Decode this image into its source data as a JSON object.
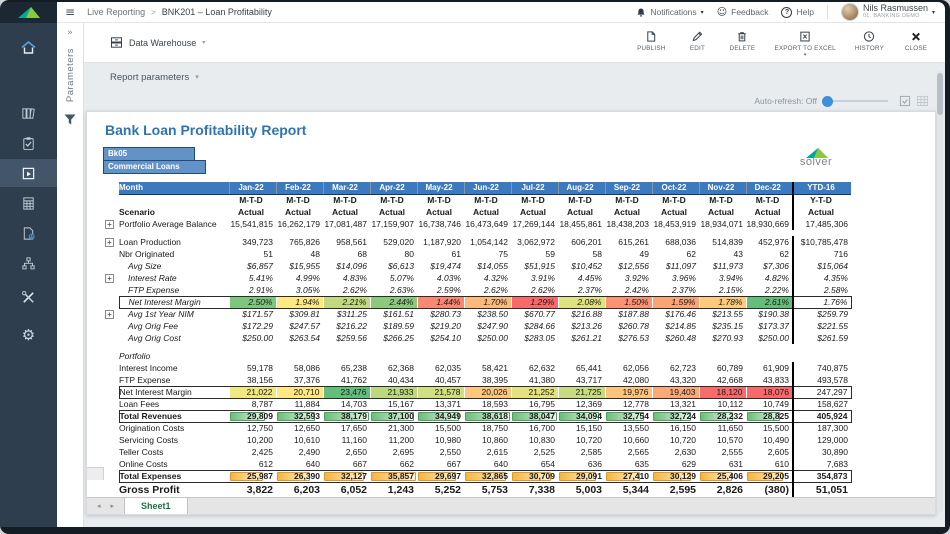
{
  "icons": {
    "hamburger": "≡",
    "chevron_down": "▾",
    "collapse": "»",
    "prev": "◂",
    "next": "▸",
    "plus": "+",
    "smiley": "☺",
    "help": "?",
    "gear": "⚙"
  },
  "titlebar": {
    "breadcrumb_root": "Live Reporting",
    "breadcrumb_sep": ">",
    "breadcrumb_current": "BNK201 – Loan Profitability",
    "notifications": "Notifications",
    "feedback": "Feedback",
    "help": "Help",
    "user_name": "Nils Rasmussen",
    "user_org": "01. Banking Demo"
  },
  "toolbar": {
    "source_label": "Data Warehouse",
    "actions": [
      {
        "id": "publish",
        "label": "PUBLISH"
      },
      {
        "id": "edit",
        "label": "EDIT"
      },
      {
        "id": "delete",
        "label": "DELETE"
      },
      {
        "id": "export",
        "label": "EXPORT TO EXCEL"
      },
      {
        "id": "history",
        "label": "HISTORY"
      },
      {
        "id": "close",
        "label": "CLOSE"
      }
    ]
  },
  "params": {
    "label": "Report parameters",
    "panel_label": "Parameters",
    "autorefresh_label": "Auto-refresh: Off"
  },
  "sheetbar": {
    "tab": "Sheet1"
  },
  "colors": {
    "title_blue": "#2e74b5",
    "header_blue": "#3c7ac0",
    "tag_blue": "#6292c6",
    "heat_red": "#F8696B",
    "heat_yellow": "#FFEB84",
    "heat_green": "#63BE7B",
    "databar_green": "#6cbd7a",
    "databar_gold": "#f7b53c",
    "sheet_tab_green": "#1e7145",
    "sidebar_navy": "#2f3e4e"
  },
  "report": {
    "title": "Bank Loan Profitability Report",
    "tags": [
      "Bk05",
      "Commercial Loans"
    ],
    "logo_text": "solver",
    "month_label": "Month",
    "period_mtd": "M-T-D",
    "period_ytd": "Y-T-D",
    "columns": [
      "Jan-22",
      "Feb-22",
      "Mar-22",
      "Apr-22",
      "May-22",
      "Jun-22",
      "Jul-22",
      "Aug-22",
      "Sep-22",
      "Oct-22",
      "Nov-22",
      "Dec-22",
      "YTD-16"
    ],
    "rows": [
      {
        "label": "Scenario",
        "cls": "bold center",
        "values": [
          "Actual",
          "Actual",
          "Actual",
          "Actual",
          "Actual",
          "Actual",
          "Actual",
          "Actual",
          "Actual",
          "Actual",
          "Actual",
          "Actual",
          "Actual"
        ]
      },
      {
        "label": "Portfolio Average Balance",
        "plus": true,
        "values": [
          "15,541,815",
          "16,262,179",
          "17,081,487",
          "17,159,907",
          "16,738,746",
          "16,473,649",
          "17,269,144",
          "18,455,861",
          "18,438,203",
          "18,453,919",
          "18,934,071",
          "18,930,669",
          "17,485,306"
        ]
      },
      {
        "blank": true
      },
      {
        "label": "Loan Production",
        "plus": true,
        "values": [
          "349,723",
          "765,826",
          "958,561",
          "529,020",
          "1,187,920",
          "1,054,142",
          "3,062,972",
          "606,201",
          "615,261",
          "688,036",
          "514,839",
          "452,976",
          "$10,785,478"
        ]
      },
      {
        "label": "Nbr Originated",
        "values": [
          "51",
          "48",
          "68",
          "80",
          "61",
          "75",
          "59",
          "58",
          "49",
          "62",
          "43",
          "62",
          "716"
        ]
      },
      {
        "label": "Avg Size",
        "cls": "italic",
        "ind": true,
        "values": [
          "$6,857",
          "$15,955",
          "$14,096",
          "$6,613",
          "$19,474",
          "$14,055",
          "$51,915",
          "$10,452",
          "$12,556",
          "$11,097",
          "$11,973",
          "$7,306",
          "$15,064"
        ]
      },
      {
        "label": "Interest Rate",
        "cls": "italic",
        "ind": true,
        "plus": true,
        "values": [
          "5.41%",
          "4.99%",
          "4.83%",
          "5.07%",
          "4.03%",
          "4.32%",
          "3.91%",
          "4.45%",
          "3.92%",
          "3.96%",
          "3.94%",
          "4.82%",
          "4.35%"
        ]
      },
      {
        "label": "FTP Expense",
        "cls": "italic",
        "ind": true,
        "values": [
          "2.91%",
          "3.05%",
          "2.62%",
          "2.63%",
          "2.59%",
          "2.62%",
          "2.62%",
          "2.37%",
          "2.42%",
          "2.37%",
          "2.15%",
          "2.22%",
          "2.58%"
        ]
      },
      {
        "label": "Net Interest Margin",
        "cls": "italic boxed",
        "ind": true,
        "viz": "colorscale",
        "nums": [
          2.5,
          1.94,
          2.21,
          2.44,
          1.44,
          1.7,
          1.29,
          2.08,
          1.5,
          1.59,
          1.78,
          2.61
        ],
        "values": [
          "2.50%",
          "1.94%",
          "2.21%",
          "2.44%",
          "1.44%",
          "1.70%",
          "1.29%",
          "2.08%",
          "1.50%",
          "1.59%",
          "1.78%",
          "2.61%",
          "1.76%"
        ]
      },
      {
        "label": "Avg 1st Year NIM",
        "cls": "italic",
        "ind": true,
        "plus": true,
        "values": [
          "$171.57",
          "$309.81",
          "$311.25",
          "$161.51",
          "$280.73",
          "$238.50",
          "$670.77",
          "$216.88",
          "$187.88",
          "$176.46",
          "$213.55",
          "$190.38",
          "$259.79"
        ]
      },
      {
        "label": "Avg Orig Fee",
        "cls": "italic",
        "ind": true,
        "values": [
          "$172.29",
          "$247.57",
          "$216.22",
          "$189.59",
          "$219.20",
          "$247.90",
          "$284.66",
          "$213.26",
          "$260.78",
          "$214.85",
          "$235.15",
          "$173.37",
          "$221.55"
        ]
      },
      {
        "label": "Avg Orig Cost",
        "cls": "italic",
        "ind": true,
        "values": [
          "$250.00",
          "$263.54",
          "$259.56",
          "$266.25",
          "$254.10",
          "$250.00",
          "$283.05",
          "$261.21",
          "$276.53",
          "$260.48",
          "$270.93",
          "$250.00",
          "$261.59"
        ]
      },
      {
        "blank": true
      },
      {
        "label": "Portfolio",
        "cls": "italic",
        "section": true
      },
      {
        "label": "Interest Income",
        "values": [
          "59,178",
          "58,086",
          "65,238",
          "62,368",
          "62,035",
          "58,421",
          "62,632",
          "65,441",
          "62,056",
          "62,723",
          "60,789",
          "61,909",
          "740,875"
        ]
      },
      {
        "label": "FTP Expense",
        "values": [
          "38,156",
          "37,376",
          "41,762",
          "40,434",
          "40,457",
          "38,395",
          "41,380",
          "43,717",
          "42,080",
          "43,320",
          "42,668",
          "43,833",
          "493,578"
        ]
      },
      {
        "label": "Net Interest Margin",
        "cls": "boxed",
        "viz": "colorscale",
        "nums": [
          21022,
          20710,
          23476,
          21933,
          21578,
          20026,
          21252,
          21725,
          19976,
          19403,
          18120,
          18076
        ],
        "values": [
          "21,022",
          "20,710",
          "23,476",
          "21,933",
          "21,578",
          "20,026",
          "21,252",
          "21,725",
          "19,976",
          "19,403",
          "18,120",
          "18,076",
          "247,297"
        ]
      },
      {
        "label": "Loan Fees",
        "values": [
          "8,787",
          "11,884",
          "14,703",
          "15,167",
          "13,371",
          "18,593",
          "16,795",
          "12,369",
          "12,778",
          "13,321",
          "10,112",
          "10,749",
          "158,627"
        ]
      },
      {
        "label": "Total Revenues",
        "cls": "bold boxed",
        "viz": "databar-green",
        "nums": [
          29809,
          32593,
          38179,
          37100,
          34949,
          38618,
          38047,
          34094,
          32754,
          32724,
          28232,
          28825
        ],
        "values": [
          "29,809",
          "32,593",
          "38,179",
          "37,100",
          "34,949",
          "38,618",
          "38,047",
          "34,094",
          "32,754",
          "32,724",
          "28,232",
          "28,825",
          "405,924"
        ]
      },
      {
        "label": "Origination Costs",
        "values": [
          "12,750",
          "12,650",
          "17,650",
          "21,300",
          "15,500",
          "18,750",
          "16,700",
          "15,150",
          "13,550",
          "16,150",
          "11,650",
          "15,500",
          "187,300"
        ]
      },
      {
        "label": "Servicing Costs",
        "values": [
          "10,200",
          "10,610",
          "11,160",
          "11,200",
          "10,980",
          "10,860",
          "10,830",
          "10,720",
          "10,660",
          "10,720",
          "10,570",
          "10,490",
          "129,000"
        ]
      },
      {
        "label": "Teller Costs",
        "values": [
          "2,425",
          "2,490",
          "2,650",
          "2,695",
          "2,550",
          "2,615",
          "2,525",
          "2,585",
          "2,565",
          "2,630",
          "2,555",
          "2,605",
          "30,890"
        ]
      },
      {
        "label": "Online Costs",
        "values": [
          "612",
          "640",
          "667",
          "662",
          "667",
          "640",
          "654",
          "636",
          "635",
          "629",
          "631",
          "610",
          "7,683"
        ]
      },
      {
        "label": "Total Expenses",
        "cls": "bold boxed",
        "viz": "databar-gold",
        "nums": [
          25987,
          26390,
          32127,
          35857,
          29697,
          32865,
          30709,
          29091,
          27410,
          30129,
          25406,
          29205
        ],
        "values": [
          "25,987",
          "26,390",
          "32,127",
          "35,857",
          "29,697",
          "32,865",
          "30,709",
          "29,091",
          "27,410",
          "30,129",
          "25,406",
          "29,205",
          "354,873"
        ]
      },
      {
        "label": "Gross Profit",
        "cls": "gp",
        "values": [
          "3,822",
          "6,203",
          "6,052",
          "1,243",
          "5,252",
          "5,753",
          "7,338",
          "5,003",
          "5,344",
          "2,595",
          "2,826",
          "(380)",
          "51,051"
        ]
      }
    ]
  }
}
